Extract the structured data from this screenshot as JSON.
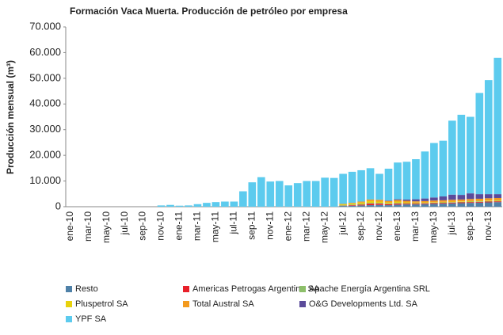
{
  "chart_data": {
    "type": "stacked_bar",
    "title": "Formación Vaca Muerta. Producción de petróleo por empresa",
    "y_label": "Producción mensual (m³)",
    "categories": [
      "ene-10",
      null,
      "mar-10",
      null,
      "may-10",
      null,
      "jul-10",
      null,
      "sep-10",
      null,
      "nov-10",
      null,
      "ene-11",
      null,
      "mar-11",
      null,
      "may-11",
      null,
      "jul-11",
      null,
      "sep-11",
      null,
      "nov-11",
      null,
      "ene-12",
      null,
      "mar-12",
      null,
      "may-12",
      null,
      "jul-12",
      null,
      "sep-12",
      null,
      "nov-12",
      null,
      "ene-13",
      null,
      "mar-13",
      null,
      "may-13",
      null,
      "jul-13",
      null,
      "sep-13",
      null,
      "nov-13",
      null
    ],
    "series": [
      {
        "name": "Resto",
        "color": "#4f81a8",
        "values": [
          0,
          0,
          0,
          0,
          0,
          0,
          0,
          0,
          0,
          0,
          0,
          0,
          0,
          0,
          0,
          0,
          0,
          0,
          0,
          0,
          0,
          0,
          0,
          0,
          0,
          0,
          0,
          0,
          0,
          0,
          300,
          400,
          500,
          600,
          700,
          600,
          800,
          900,
          900,
          1000,
          1100,
          1200,
          1300,
          1400,
          1500,
          1600,
          1700,
          1800
        ]
      },
      {
        "name": "Americas Petrogas Argentina SA",
        "color": "#e8202a",
        "values": [
          0,
          0,
          0,
          0,
          0,
          0,
          0,
          0,
          0,
          0,
          0,
          0,
          0,
          0,
          0,
          0,
          0,
          0,
          0,
          0,
          0,
          0,
          0,
          0,
          0,
          0,
          0,
          0,
          0,
          0,
          100,
          200,
          300,
          600,
          500,
          400,
          400,
          300,
          300,
          300,
          300,
          300,
          300,
          300,
          300,
          300,
          300,
          300
        ]
      },
      {
        "name": "Apache Energía Argentina SRL",
        "color": "#8dbf6a",
        "values": [
          0,
          0,
          0,
          0,
          0,
          0,
          0,
          0,
          0,
          0,
          0,
          0,
          0,
          0,
          0,
          0,
          0,
          0,
          0,
          0,
          0,
          0,
          0,
          0,
          0,
          0,
          0,
          0,
          0,
          0,
          200,
          200,
          300,
          300,
          300,
          300,
          300,
          200,
          200,
          200,
          200,
          200,
          200,
          200,
          200,
          200,
          200,
          200
        ]
      },
      {
        "name": "Pluspetrol SA",
        "color": "#e8d20c",
        "values": [
          0,
          0,
          0,
          0,
          0,
          0,
          0,
          0,
          0,
          0,
          0,
          0,
          0,
          0,
          0,
          0,
          0,
          0,
          0,
          0,
          0,
          0,
          0,
          0,
          0,
          0,
          0,
          0,
          0,
          0,
          300,
          400,
          500,
          700,
          500,
          400,
          500,
          300,
          200,
          200,
          200,
          200,
          200,
          200,
          200,
          200,
          200,
          200
        ]
      },
      {
        "name": "Total Austral SA",
        "color": "#f39a1e",
        "values": [
          0,
          0,
          0,
          0,
          0,
          0,
          0,
          0,
          0,
          0,
          0,
          0,
          0,
          0,
          0,
          0,
          0,
          0,
          0,
          0,
          0,
          0,
          0,
          0,
          0,
          0,
          0,
          0,
          0,
          0,
          200,
          300,
          400,
          600,
          700,
          500,
          600,
          600,
          500,
          500,
          600,
          600,
          700,
          700,
          800,
          800,
          900,
          900
        ]
      },
      {
        "name": "O&G Developments Ltd. SA",
        "color": "#5b4b9a",
        "values": [
          0,
          0,
          0,
          0,
          0,
          0,
          0,
          0,
          0,
          0,
          0,
          0,
          0,
          0,
          0,
          0,
          0,
          0,
          0,
          0,
          0,
          0,
          0,
          0,
          0,
          0,
          0,
          0,
          0,
          0,
          0,
          0,
          0,
          0,
          0,
          200,
          300,
          500,
          800,
          1000,
          1200,
          1500,
          2000,
          1800,
          2200,
          1800,
          1600,
          1500
        ]
      },
      {
        "name": "YPF SA",
        "color": "#5ccbee",
        "values": [
          0,
          0,
          0,
          0,
          0,
          0,
          0,
          0,
          0,
          0,
          500,
          700,
          400,
          500,
          1000,
          1500,
          1800,
          2000,
          2000,
          6000,
          9500,
          11500,
          9800,
          10000,
          8300,
          9200,
          10000,
          10000,
          11300,
          11200,
          11700,
          12100,
          12200,
          12200,
          10100,
          12400,
          14300,
          14700,
          15600,
          18300,
          21200,
          21700,
          28800,
          31200,
          29800,
          39400,
          44400,
          53100
        ]
      }
    ],
    "ylim": [
      0,
      70000
    ],
    "yticks": [
      0,
      {
        "value": 10000,
        "label": "10.000"
      },
      {
        "value": 20000,
        "label": "20.000"
      },
      {
        "value": 30000,
        "label": "30.000"
      },
      {
        "value": 40000,
        "label": "40.000"
      },
      {
        "value": 50000,
        "label": "50.000"
      },
      {
        "value": 60000,
        "label": "60.000"
      },
      {
        "value": 70000,
        "label": "70.000"
      }
    ],
    "grid": false
  }
}
